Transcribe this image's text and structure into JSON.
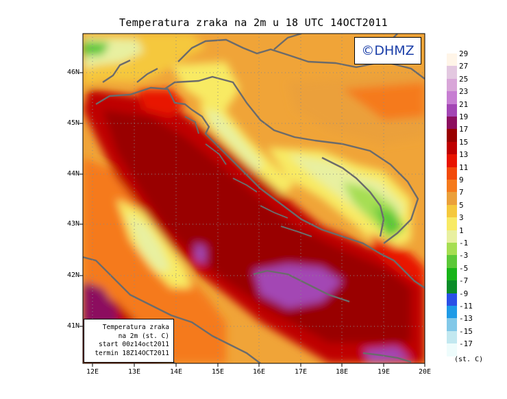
{
  "title": "Temperatura zraka na 2m u 18 UTC 14OCT2011",
  "copyright": "©DHMZ",
  "info_box": {
    "line1": "Temperatura zraka",
    "line2": "na 2m (st. C)",
    "line3": "start 00z14oct2011",
    "line4": "termin 18Z14OCT2011"
  },
  "latitude_ticks": [
    "46N",
    "45N",
    "44N",
    "43N",
    "42N",
    "41N"
  ],
  "longitude_ticks": [
    "12E",
    "13E",
    "14E",
    "15E",
    "16E",
    "17E",
    "18E",
    "19E",
    "20E"
  ],
  "legend": {
    "units": "(st. C)",
    "labels": [
      "29",
      "27",
      "25",
      "23",
      "21",
      "19",
      "17",
      "15",
      "13",
      "11",
      "9",
      "7",
      "5",
      "3",
      "1",
      "-1",
      "-3",
      "-5",
      "-7",
      "-9",
      "-11",
      "-13",
      "-15",
      "-17"
    ],
    "colors": [
      "#fff5e8",
      "#e3c8e0",
      "#d8a6d8",
      "#c77ed2",
      "#a346b4",
      "#8c0e5e",
      "#990000",
      "#bf0000",
      "#e81400",
      "#f24a0a",
      "#f57a1c",
      "#eba03a",
      "#f5c83c",
      "#f8ea64",
      "#e8f0a0",
      "#a6de52",
      "#5cc838",
      "#18b418",
      "#0a8c28",
      "#2a50e6",
      "#1e9ae6",
      "#82c8e8",
      "#c2e8f0",
      "#eefcfc"
    ]
  },
  "colors": {
    "frame_bg": "#f0b040",
    "sea_warm": "#990000",
    "sea_mid": "#c00000",
    "coast_hot": "#e81400",
    "outline": "#6b6b6b",
    "copyright_text": "#1a3ea8"
  }
}
